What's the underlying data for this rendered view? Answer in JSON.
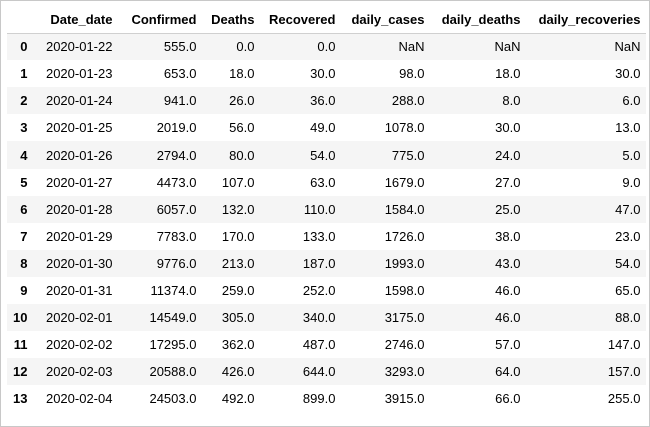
{
  "table": {
    "columns": [
      "Date_date",
      "Confirmed",
      "Deaths",
      "Recovered",
      "daily_cases",
      "daily_deaths",
      "daily_recoveries"
    ],
    "rows": [
      {
        "index": "0",
        "cells": [
          "2020-01-22",
          "555.0",
          "0.0",
          "0.0",
          "NaN",
          "NaN",
          "NaN"
        ]
      },
      {
        "index": "1",
        "cells": [
          "2020-01-23",
          "653.0",
          "18.0",
          "30.0",
          "98.0",
          "18.0",
          "30.0"
        ]
      },
      {
        "index": "2",
        "cells": [
          "2020-01-24",
          "941.0",
          "26.0",
          "36.0",
          "288.0",
          "8.0",
          "6.0"
        ]
      },
      {
        "index": "3",
        "cells": [
          "2020-01-25",
          "2019.0",
          "56.0",
          "49.0",
          "1078.0",
          "30.0",
          "13.0"
        ]
      },
      {
        "index": "4",
        "cells": [
          "2020-01-26",
          "2794.0",
          "80.0",
          "54.0",
          "775.0",
          "24.0",
          "5.0"
        ]
      },
      {
        "index": "5",
        "cells": [
          "2020-01-27",
          "4473.0",
          "107.0",
          "63.0",
          "1679.0",
          "27.0",
          "9.0"
        ]
      },
      {
        "index": "6",
        "cells": [
          "2020-01-28",
          "6057.0",
          "132.0",
          "110.0",
          "1584.0",
          "25.0",
          "47.0"
        ]
      },
      {
        "index": "7",
        "cells": [
          "2020-01-29",
          "7783.0",
          "170.0",
          "133.0",
          "1726.0",
          "38.0",
          "23.0"
        ]
      },
      {
        "index": "8",
        "cells": [
          "2020-01-30",
          "9776.0",
          "213.0",
          "187.0",
          "1993.0",
          "43.0",
          "54.0"
        ]
      },
      {
        "index": "9",
        "cells": [
          "2020-01-31",
          "11374.0",
          "259.0",
          "252.0",
          "1598.0",
          "46.0",
          "65.0"
        ]
      },
      {
        "index": "10",
        "cells": [
          "2020-02-01",
          "14549.0",
          "305.0",
          "340.0",
          "3175.0",
          "46.0",
          "88.0"
        ]
      },
      {
        "index": "11",
        "cells": [
          "2020-02-02",
          "17295.0",
          "362.0",
          "487.0",
          "2746.0",
          "57.0",
          "147.0"
        ]
      },
      {
        "index": "12",
        "cells": [
          "2020-02-03",
          "20588.0",
          "426.0",
          "644.0",
          "3293.0",
          "64.0",
          "157.0"
        ]
      },
      {
        "index": "13",
        "cells": [
          "2020-02-04",
          "24503.0",
          "492.0",
          "899.0",
          "3915.0",
          "66.0",
          "255.0"
        ]
      }
    ]
  }
}
